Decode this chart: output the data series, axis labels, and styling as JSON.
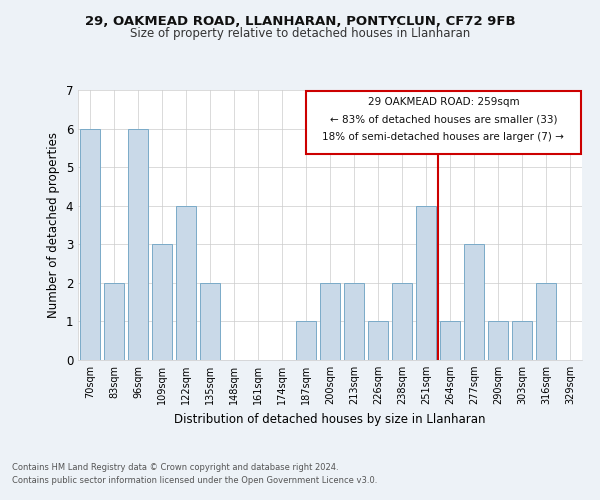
{
  "title1": "29, OAKMEAD ROAD, LLANHARAN, PONTYCLUN, CF72 9FB",
  "title2": "Size of property relative to detached houses in Llanharan",
  "xlabel": "Distribution of detached houses by size in Llanharan",
  "ylabel": "Number of detached properties",
  "categories": [
    "70sqm",
    "83sqm",
    "96sqm",
    "109sqm",
    "122sqm",
    "135sqm",
    "148sqm",
    "161sqm",
    "174sqm",
    "187sqm",
    "200sqm",
    "213sqm",
    "226sqm",
    "238sqm",
    "251sqm",
    "264sqm",
    "277sqm",
    "290sqm",
    "303sqm",
    "316sqm",
    "329sqm"
  ],
  "values": [
    6,
    2,
    6,
    3,
    4,
    2,
    0,
    0,
    0,
    1,
    2,
    2,
    1,
    2,
    4,
    1,
    3,
    1,
    1,
    2,
    0
  ],
  "bar_color": "#c9d9e8",
  "bar_edge_color": "#7aaac8",
  "vline_x": 14.5,
  "vline_color": "#cc0000",
  "annotation_title": "29 OAKMEAD ROAD: 259sqm",
  "annotation_line1": "← 83% of detached houses are smaller (33)",
  "annotation_line2": "18% of semi-detached houses are larger (7) →",
  "annotation_box_color": "#cc0000",
  "ylim": [
    0,
    7
  ],
  "yticks": [
    0,
    1,
    2,
    3,
    4,
    5,
    6,
    7
  ],
  "footnote1": "Contains HM Land Registry data © Crown copyright and database right 2024.",
  "footnote2": "Contains public sector information licensed under the Open Government Licence v3.0.",
  "bg_color": "#edf2f7",
  "plot_bg_color": "#ffffff"
}
